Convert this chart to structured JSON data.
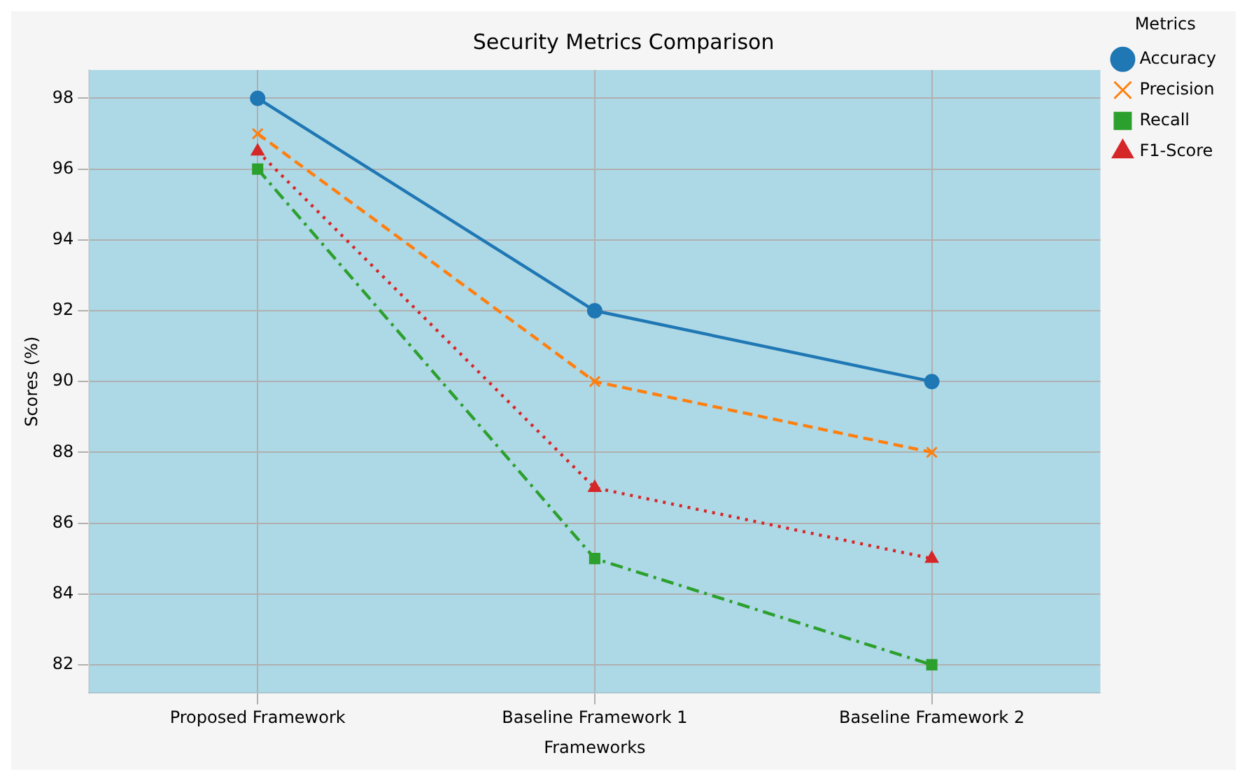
{
  "chart_data": {
    "type": "line",
    "title": "Security Metrics Comparison",
    "xlabel": "Frameworks",
    "ylabel": "Scores (%)",
    "legend_title": "Metrics",
    "categories": [
      "Proposed Framework",
      "Baseline Framework 1",
      "Baseline Framework 2"
    ],
    "series": [
      {
        "name": "Accuracy",
        "color": "#1f77b4",
        "values": [
          98,
          92,
          90
        ],
        "marker": "circle",
        "line_style": "solid"
      },
      {
        "name": "Precision",
        "color": "#ff7f0e",
        "values": [
          97,
          90,
          88
        ],
        "marker": "cross",
        "line_style": "dashed"
      },
      {
        "name": "Recall",
        "color": "#2ca02c",
        "values": [
          96,
          85,
          82
        ],
        "marker": "square",
        "line_style": "dashdot"
      },
      {
        "name": "F1-Score",
        "color": "#d62728",
        "values": [
          96.5,
          87,
          85
        ],
        "marker": "triangle",
        "line_style": "dotted"
      }
    ],
    "ylim": [
      81.2,
      98.8
    ],
    "yticks": [
      82,
      84,
      86,
      88,
      90,
      92,
      94,
      96,
      98
    ],
    "grid": true,
    "legend": "top right"
  }
}
